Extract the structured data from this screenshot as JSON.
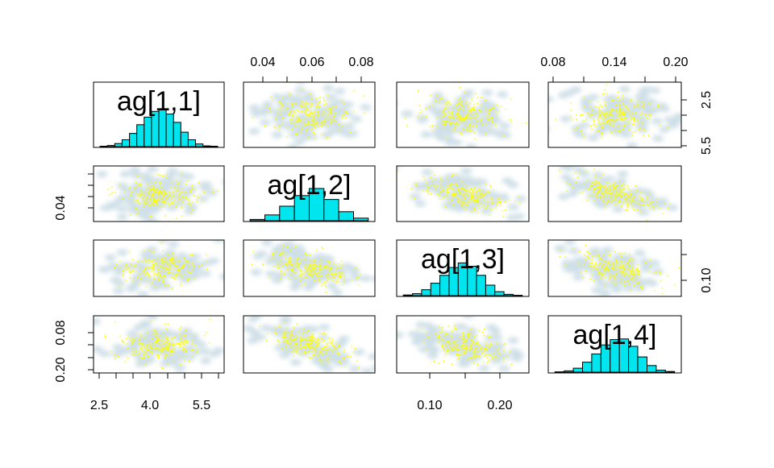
{
  "chart_data": {
    "type": "scatter",
    "subtype": "pairs-plot (scatterplot matrix)",
    "variables": [
      "ag[1,1]",
      "ag[1,2]",
      "ag[1,3]",
      "ag[1,4]"
    ],
    "variable_ranges": [
      [
        2.4,
        5.8
      ],
      [
        0.02,
        0.09
      ],
      [
        0.05,
        0.25
      ],
      [
        0.06,
        0.21
      ]
    ],
    "diagonal": "histogram",
    "off_diagonal": "smoothed density scatter with yellow points",
    "tick_labels": {
      "top_col2": [
        "0.04",
        "0.06",
        "0.08"
      ],
      "top_col4": [
        "0.08",
        "0.14",
        "0.20"
      ],
      "right_row1": [
        "2.5",
        "5.5"
      ],
      "left_row2": [
        "0.04"
      ],
      "right_row3": [
        "0.10"
      ],
      "left_row4": [
        "0.08",
        "0.20"
      ],
      "bottom_col1": [
        "2.5",
        "4.0",
        "5.5"
      ],
      "bottom_col3": [
        "0.10",
        "0.20"
      ]
    },
    "histograms": [
      {
        "variable": "ag[1,1]",
        "counts": [
          0.01,
          0.03,
          0.08,
          0.18,
          0.35,
          0.58,
          0.78,
          0.93,
          1.0,
          0.86,
          0.64,
          0.38,
          0.18,
          0.07,
          0.02,
          0.01
        ]
      },
      {
        "variable": "ag[1,2]",
        "counts": [
          0.04,
          0.18,
          0.45,
          0.78,
          1.0,
          0.66,
          0.28,
          0.08
        ]
      },
      {
        "variable": "ag[1,3]",
        "counts": [
          0.02,
          0.06,
          0.18,
          0.38,
          0.62,
          0.86,
          1.0,
          0.9,
          0.62,
          0.32,
          0.12,
          0.04,
          0.01
        ]
      },
      {
        "variable": "ag[1,4]",
        "counts": [
          0.01,
          0.04,
          0.12,
          0.3,
          0.55,
          0.82,
          0.98,
          1.0,
          0.78,
          0.46,
          0.2,
          0.06,
          0.02
        ]
      }
    ],
    "correlations": [
      [
        1,
        0,
        0,
        0
      ],
      [
        0,
        1,
        -0.45,
        -0.65
      ],
      [
        0,
        -0.45,
        1,
        -0.45
      ],
      [
        0,
        -0.65,
        -0.45,
        1
      ]
    ],
    "colors": {
      "histogram_fill": "#00e5ee",
      "points": "#ffff00",
      "density_cloud": "#a8c6d4",
      "frame": "#000000"
    }
  }
}
